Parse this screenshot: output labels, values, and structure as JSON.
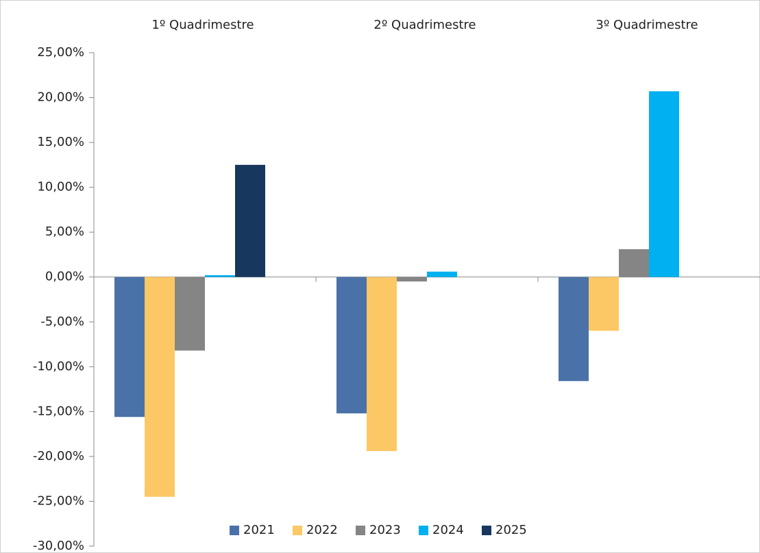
{
  "chart_data": {
    "type": "bar",
    "categories": [
      "1º Quadrimestre",
      "2º Quadrimestre",
      "3º Quadrimestre"
    ],
    "series": [
      {
        "name": "2021",
        "color": "#4a72a8",
        "values": [
          -15.6,
          -15.2,
          -11.6
        ]
      },
      {
        "name": "2022",
        "color": "#fcc865",
        "values": [
          -24.5,
          -19.4,
          -6.0
        ]
      },
      {
        "name": "2023",
        "color": "#858585",
        "values": [
          -8.2,
          -0.5,
          3.1
        ]
      },
      {
        "name": "2024",
        "color": "#00b0f0",
        "values": [
          0.2,
          0.6,
          20.7
        ]
      },
      {
        "name": "2025",
        "color": "#17375e",
        "values": [
          12.5,
          null,
          null
        ]
      }
    ],
    "ylim": [
      -30,
      25
    ],
    "yticks": [
      {
        "value": -30,
        "label": "-30,00%"
      },
      {
        "value": -25,
        "label": "-25,00%"
      },
      {
        "value": -20,
        "label": "-20,00%"
      },
      {
        "value": -15,
        "label": "-15,00%"
      },
      {
        "value": -10,
        "label": "-10,00%"
      },
      {
        "value": -5,
        "label": "-5,00%"
      },
      {
        "value": 0,
        "label": "0,00%"
      },
      {
        "value": 5,
        "label": "5,00%"
      },
      {
        "value": 10,
        "label": "10,00%"
      },
      {
        "value": 15,
        "label": "15,00%"
      },
      {
        "value": 20,
        "label": "20,00%"
      },
      {
        "value": 25,
        "label": "25,00%"
      }
    ],
    "legend": "bottom"
  }
}
